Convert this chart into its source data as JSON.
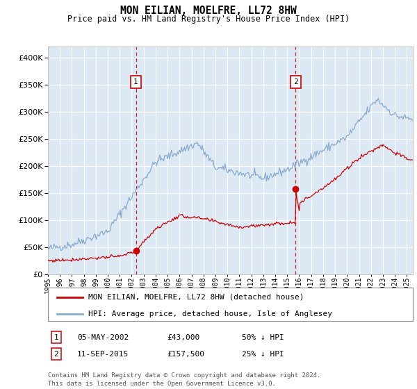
{
  "title": "MON EILIAN, MOELFRE, LL72 8HW",
  "subtitle": "Price paid vs. HM Land Registry's House Price Index (HPI)",
  "plot_bg_color": "#dce9f5",
  "ylim": [
    0,
    420000
  ],
  "yticks": [
    0,
    50000,
    100000,
    150000,
    200000,
    250000,
    300000,
    350000,
    400000
  ],
  "legend_line1": "MON EILIAN, MOELFRE, LL72 8HW (detached house)",
  "legend_line2": "HPI: Average price, detached house, Isle of Anglesey",
  "line1_color": "#cc0000",
  "line2_color": "#88aacc",
  "annotation1": {
    "num": "1",
    "date": "05-MAY-2002",
    "price": "£43,000",
    "note": "50% ↓ HPI"
  },
  "annotation2": {
    "num": "2",
    "date": "11-SEP-2015",
    "price": "£157,500",
    "note": "25% ↓ HPI"
  },
  "footer": "Contains HM Land Registry data © Crown copyright and database right 2024.\nThis data is licensed under the Open Government Licence v3.0.",
  "sale1_year": 2002.35,
  "sale1_price": 43000,
  "sale2_year": 2015.7,
  "sale2_price": 157500,
  "xstart": 1995.0,
  "xend": 2025.5
}
